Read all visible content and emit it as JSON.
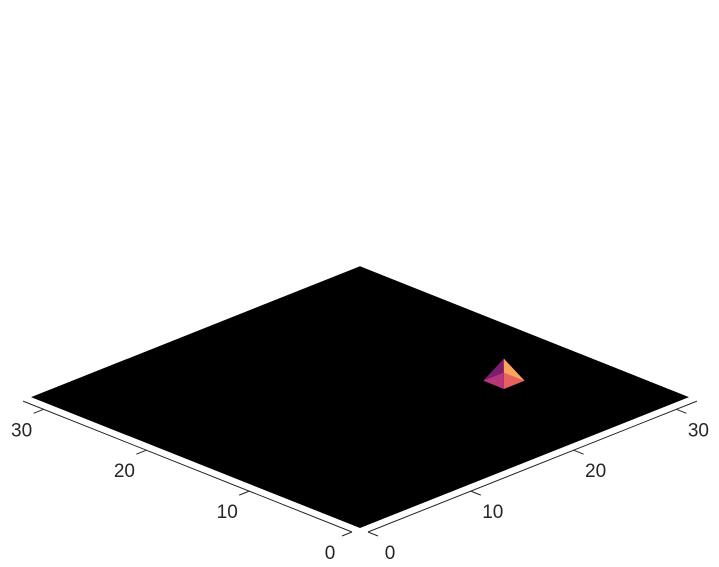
{
  "chart_data": {
    "type": "surface",
    "title": "",
    "xlabel": "",
    "ylabel": "",
    "zlabel": "",
    "x_axis": {
      "range": [
        0,
        32
      ],
      "ticks": [
        0,
        10,
        20,
        30
      ],
      "tick_labels": [
        "0",
        "10",
        "20",
        "30"
      ]
    },
    "y_axis": {
      "range": [
        0,
        32
      ],
      "ticks": [
        0,
        10,
        20,
        30
      ],
      "tick_labels": [
        "0",
        "10",
        "20",
        "30"
      ]
    },
    "surface": {
      "base_value": 0,
      "peak": {
        "x": 25,
        "y": 11,
        "value": 1
      },
      "peak_halfwidth": 1,
      "colormap": "magma",
      "base_color": "#000000"
    },
    "grid": false
  }
}
